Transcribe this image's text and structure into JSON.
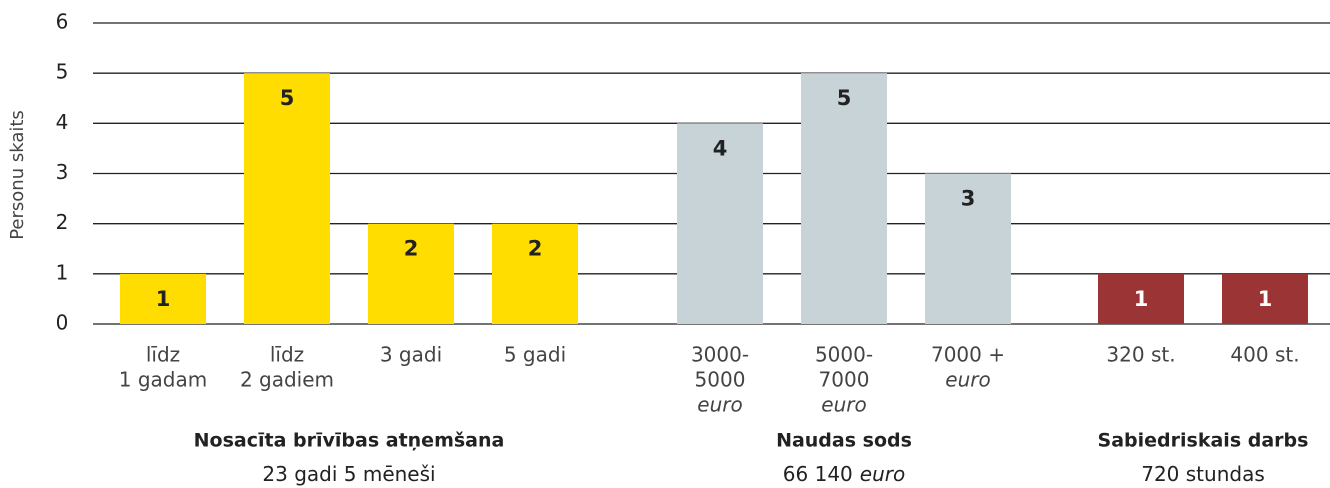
{
  "chart_data": {
    "type": "bar",
    "y_label": "Personu skaits",
    "ylim": [
      0,
      6
    ],
    "yticks": [
      0,
      1,
      2,
      3,
      4,
      5,
      6
    ],
    "grid": true,
    "groups": [
      {
        "name": "Nosacīta brīvības atņemšana",
        "total": "23 gadi 5 mēneši",
        "color": "#ffdd00",
        "label_color": "#222222",
        "categories": [
          [
            "līdz",
            "1 gadam"
          ],
          [
            "līdz",
            "2 gadiem"
          ],
          [
            "3 gadi"
          ],
          [
            "5 gadi"
          ]
        ],
        "values": [
          1,
          5,
          2,
          2
        ]
      },
      {
        "name": "Naudas sods",
        "total": "66 140",
        "unit": "euro",
        "color": "#c8d3d8",
        "label_color": "#222222",
        "categories": [
          [
            "3000-",
            "5000"
          ],
          [
            "5000-",
            "7000"
          ],
          [
            "7000 +"
          ]
        ],
        "values": [
          4,
          5,
          3
        ]
      },
      {
        "name": "Sabiedriskais darbs",
        "total": "720 stundas",
        "color": "#9b3434",
        "label_color": "#ffffff",
        "categories": [
          [
            "320 st."
          ],
          [
            "400 st."
          ]
        ],
        "values": [
          1,
          1
        ]
      }
    ]
  }
}
